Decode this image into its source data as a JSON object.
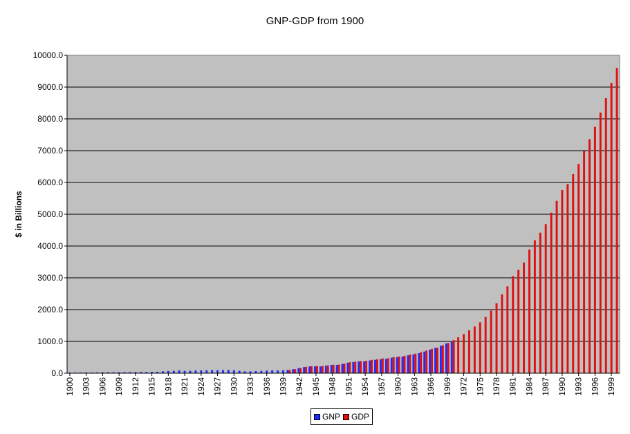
{
  "chart_data": {
    "type": "bar",
    "title": "GNP-GDP from 1900",
    "xlabel": "",
    "ylabel": "$ in Billions",
    "ylim": [
      0,
      10000
    ],
    "yticks": [
      "0.0",
      "1000.0",
      "2000.0",
      "3000.0",
      "4000.0",
      "5000.0",
      "6000.0",
      "7000.0",
      "8000.0",
      "9000.0",
      "10000.0"
    ],
    "ytick_values": [
      0,
      1000,
      2000,
      3000,
      4000,
      5000,
      6000,
      7000,
      8000,
      9000,
      10000
    ],
    "xtick_labels": [
      "1900",
      "1903",
      "1906",
      "1909",
      "1912",
      "1915",
      "1918",
      "1921",
      "1924",
      "1927",
      "1930",
      "1933",
      "1936",
      "1939",
      "1942",
      "1945",
      "1948",
      "1951",
      "1954",
      "1957",
      "1960",
      "1963",
      "1966",
      "1969",
      "1972",
      "1975",
      "1978",
      "1981",
      "1984",
      "1987",
      "1990",
      "1993",
      "1996",
      "1999"
    ],
    "grid": true,
    "background": "#c0c0c0",
    "legend_position": "bottom",
    "categories": [
      "1900",
      "1901",
      "1902",
      "1903",
      "1904",
      "1905",
      "1906",
      "1907",
      "1908",
      "1909",
      "1910",
      "1911",
      "1912",
      "1913",
      "1914",
      "1915",
      "1916",
      "1917",
      "1918",
      "1919",
      "1920",
      "1921",
      "1922",
      "1923",
      "1924",
      "1925",
      "1926",
      "1927",
      "1928",
      "1929",
      "1930",
      "1931",
      "1932",
      "1933",
      "1934",
      "1935",
      "1936",
      "1937",
      "1938",
      "1939",
      "1940",
      "1941",
      "1942",
      "1943",
      "1944",
      "1945",
      "1946",
      "1947",
      "1948",
      "1949",
      "1950",
      "1951",
      "1952",
      "1953",
      "1954",
      "1955",
      "1956",
      "1957",
      "1958",
      "1959",
      "1960",
      "1961",
      "1962",
      "1963",
      "1964",
      "1965",
      "1966",
      "1967",
      "1968",
      "1969",
      "1970",
      "1971",
      "1972",
      "1973",
      "1974",
      "1975",
      "1976",
      "1977",
      "1978",
      "1979",
      "1980",
      "1981",
      "1982",
      "1983",
      "1984",
      "1985",
      "1986",
      "1987",
      "1988",
      "1989",
      "1990",
      "1991",
      "1992",
      "1993",
      "1994",
      "1995",
      "1996",
      "1997",
      "1998",
      "1999",
      "2000"
    ],
    "series": [
      {
        "name": "GNP",
        "color": "#1f2bff",
        "values": [
          19,
          21,
          22,
          23,
          23,
          25,
          28,
          30,
          28,
          32,
          34,
          34,
          37,
          38,
          37,
          40,
          47,
          58,
          70,
          75,
          88,
          74,
          74,
          86,
          88,
          91,
          98,
          96,
          98,
          103,
          91,
          76,
          59,
          56,
          65,
          72,
          83,
          91,
          85,
          91,
          100,
          125,
          160,
          193,
          211,
          213,
          212,
          235,
          259,
          260,
          290,
          330,
          350,
          370,
          370,
          400,
          420,
          442,
          450,
          485,
          505,
          520,
          560,
          590,
          630,
          680,
          740,
          795,
          860,
          935,
          980,
          null,
          null,
          null,
          null,
          null,
          null,
          null,
          null,
          null,
          null,
          null,
          null,
          null,
          null,
          null,
          null,
          null,
          null,
          null,
          null,
          null,
          null,
          null,
          null,
          null,
          null,
          null,
          null,
          null,
          null
        ]
      },
      {
        "name": "GDP",
        "color": "#e01010",
        "values": [
          null,
          null,
          null,
          null,
          null,
          null,
          null,
          null,
          null,
          null,
          null,
          null,
          null,
          null,
          null,
          null,
          null,
          null,
          null,
          null,
          null,
          null,
          null,
          null,
          null,
          null,
          null,
          null,
          null,
          null,
          null,
          null,
          null,
          null,
          null,
          null,
          null,
          null,
          null,
          null,
          100,
          127,
          162,
          200,
          220,
          224,
          225,
          245,
          266,
          272,
          300,
          345,
          360,
          380,
          390,
          418,
          438,
          465,
          470,
          508,
          526,
          545,
          586,
          615,
          660,
          713,
          765,
          800,
          880,
          950,
          1040,
          1130,
          1230,
          1350,
          1470,
          1600,
          1770,
          1970,
          2200,
          2480,
          2730,
          3050,
          3250,
          3480,
          3890,
          4180,
          4420,
          4690,
          5050,
          5420,
          5760,
          5950,
          6260,
          6580,
          6990,
          7360,
          7750,
          8200,
          8650,
          9130,
          9600
        ]
      }
    ]
  }
}
